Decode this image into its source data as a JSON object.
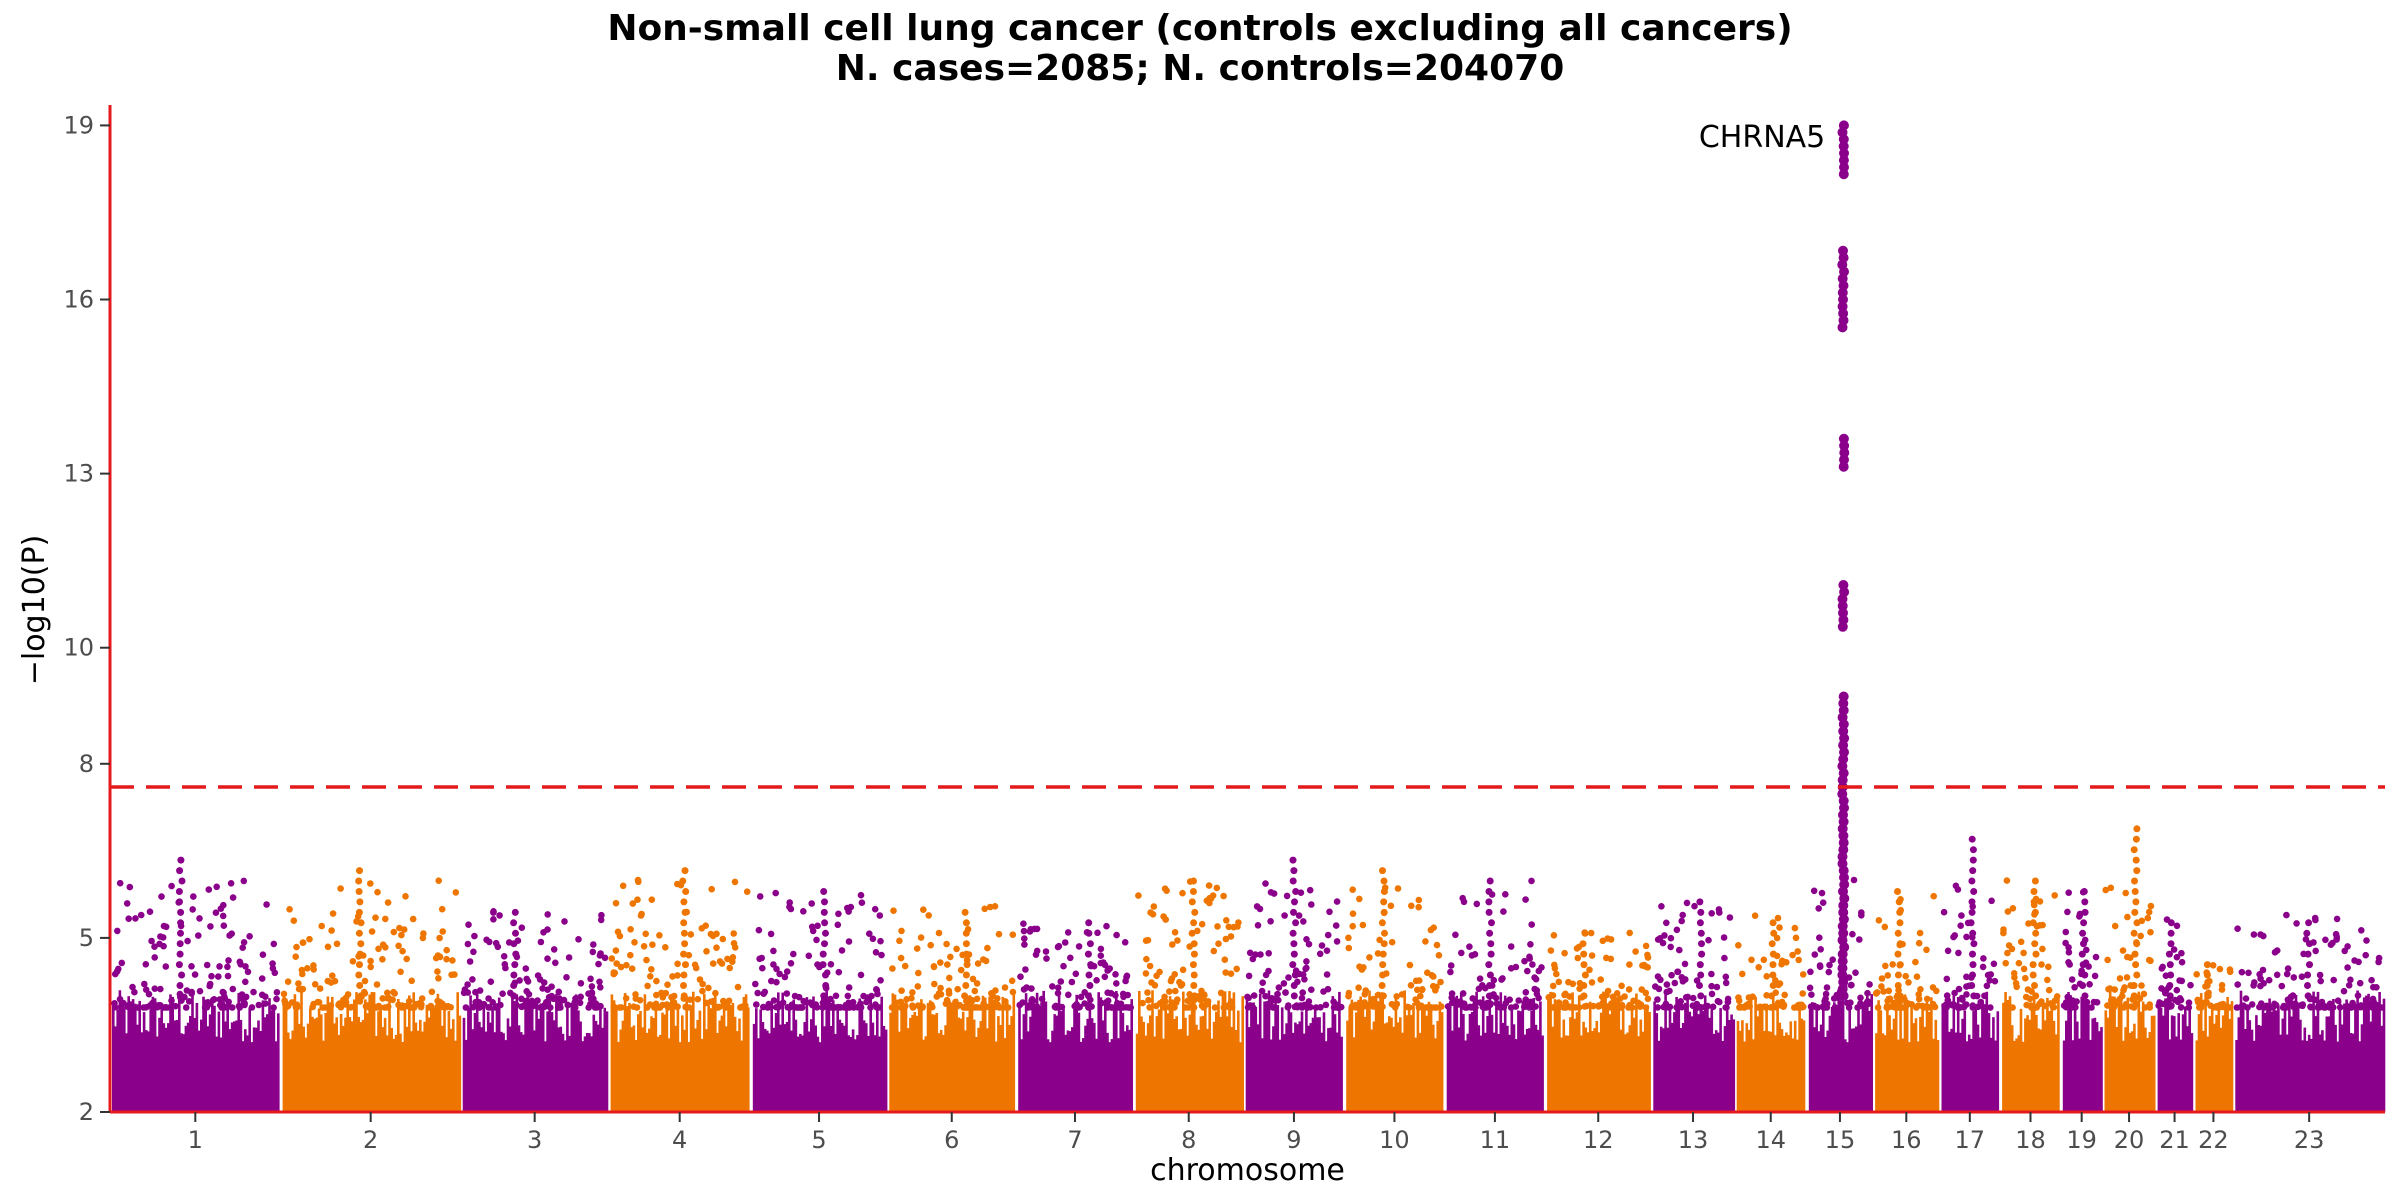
{
  "chart_data": {
    "type": "scatter",
    "subtype": "manhattan",
    "title": "Non-small cell lung cancer (controls excluding all cancers)",
    "subtitle": "N. cases=2085; N. controls=204070",
    "xlabel": "chromosome",
    "ylabel": "−log10(P)",
    "ylim": [
      2,
      19.3
    ],
    "yticks": [
      2,
      5,
      8,
      10,
      13,
      16,
      19
    ],
    "threshold": 7.6,
    "threshold_style": "dashed",
    "colors": {
      "odd": "#8B008B",
      "even": "#EE7600",
      "threshold": "#E41A1C",
      "axis": "#E41A1C"
    },
    "grid": false,
    "legend": "none",
    "chromosomes": [
      {
        "label": "1",
        "start": 0.0,
        "end": 9.0,
        "peak": 6.4
      },
      {
        "label": "2",
        "start": 9.0,
        "end": 18.5,
        "peak": 6.3
      },
      {
        "label": "3",
        "start": 18.5,
        "end": 26.3,
        "peak": 5.6
      },
      {
        "label": "4",
        "start": 26.3,
        "end": 33.8,
        "peak": 6.3
      },
      {
        "label": "5",
        "start": 33.8,
        "end": 41.0,
        "peak": 5.8
      },
      {
        "label": "6",
        "start": 41.0,
        "end": 47.8,
        "peak": 5.6
      },
      {
        "label": "7",
        "start": 47.8,
        "end": 54.0,
        "peak": 5.3
      },
      {
        "label": "8",
        "start": 54.0,
        "end": 59.8,
        "peak": 6.1
      },
      {
        "label": "9",
        "start": 59.8,
        "end": 65.1,
        "peak": 6.5
      },
      {
        "label": "10",
        "start": 65.1,
        "end": 70.4,
        "peak": 6.2
      },
      {
        "label": "11",
        "start": 70.4,
        "end": 75.7,
        "peak": 6.0
      },
      {
        "label": "12",
        "start": 75.7,
        "end": 81.3,
        "peak": 5.1
      },
      {
        "label": "13",
        "start": 81.3,
        "end": 85.7,
        "peak": 5.7
      },
      {
        "label": "14",
        "start": 85.7,
        "end": 89.5,
        "peak": 5.4
      },
      {
        "label": "15",
        "start": 89.5,
        "end": 93.0,
        "peak": 19.0
      },
      {
        "label": "16",
        "start": 93.0,
        "end": 96.5,
        "peak": 5.8
      },
      {
        "label": "17",
        "start": 96.5,
        "end": 99.7,
        "peak": 6.7
      },
      {
        "label": "18",
        "start": 99.7,
        "end": 102.9,
        "peak": 6.1
      },
      {
        "label": "19",
        "start": 102.9,
        "end": 105.1,
        "peak": 5.8
      },
      {
        "label": "20",
        "start": 105.1,
        "end": 107.9,
        "peak": 7.0
      },
      {
        "label": "21",
        "start": 107.9,
        "end": 109.9,
        "peak": 5.4
      },
      {
        "label": "22",
        "start": 109.9,
        "end": 112.0,
        "peak": 4.7
      },
      {
        "label": "23",
        "start": 112.0,
        "end": 120.0,
        "peak": 5.4
      }
    ],
    "annotations": [
      {
        "label": "CHRNA5",
        "chromosome": "15",
        "y": 18.8
      }
    ]
  }
}
